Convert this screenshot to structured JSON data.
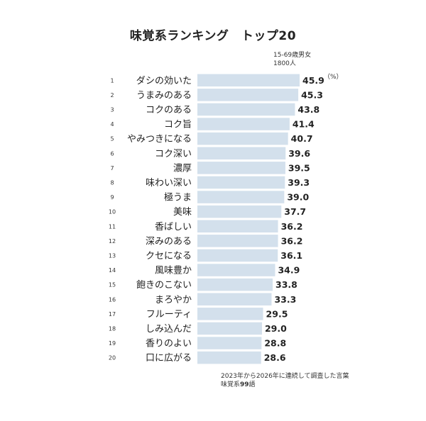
{
  "title": "味覚系ランキング　トップ20",
  "sample": {
    "line1": "15-69歳男女",
    "line2": "1800人"
  },
  "unit": "（%）",
  "footnote": {
    "line1": "2023年から2026年に連続して調査した言葉",
    "line2_prefix": "味覚系",
    "line2_count": "99",
    "line2_suffix": "語"
  },
  "colors": {
    "bar": "#d3e0ec",
    "text": "#222222"
  },
  "chart_data": {
    "type": "bar",
    "orientation": "horizontal",
    "title": "味覚系ランキング　トップ20",
    "unit": "（%）",
    "ranks": [
      1,
      2,
      3,
      4,
      5,
      6,
      7,
      8,
      9,
      10,
      11,
      12,
      13,
      14,
      15,
      16,
      17,
      18,
      19,
      20
    ],
    "categories": [
      "ダシの効いた",
      "うまみのある",
      "コクのある",
      "コク旨",
      "やみつきになる",
      "コク深い",
      "濃厚",
      "味わい深い",
      "極うま",
      "美味",
      "香ばしい",
      "深みのある",
      "クセになる",
      "風味豊か",
      "飽きのこない",
      "まろやか",
      "フルーティ",
      "しみ込んだ",
      "香りのよい",
      "口に広がる"
    ],
    "values": [
      45.9,
      45.3,
      43.8,
      41.4,
      40.7,
      39.6,
      39.5,
      39.3,
      39.0,
      37.7,
      36.2,
      36.2,
      36.1,
      34.9,
      33.8,
      33.3,
      29.5,
      29.0,
      28.8,
      28.6
    ],
    "value_labels": [
      "45.9",
      "45.3",
      "43.8",
      "41.4",
      "40.7",
      "39.6",
      "39.5",
      "39.3",
      "39.0",
      "37.7",
      "36.2",
      "36.2",
      "36.1",
      "34.9",
      "33.8",
      "33.3",
      "29.5",
      "29.0",
      "28.8",
      "28.6"
    ],
    "xlim": [
      0,
      45.9
    ],
    "grid": false,
    "legend": "none"
  }
}
